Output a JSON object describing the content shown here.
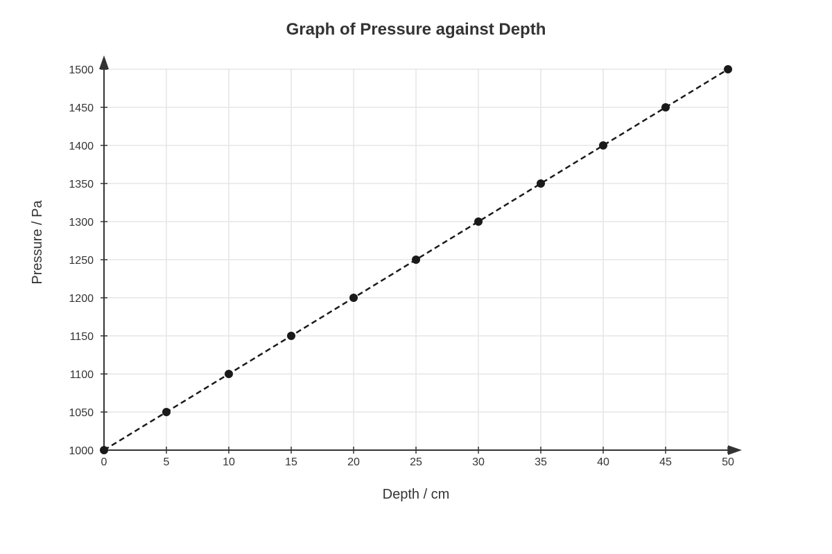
{
  "chart_data": {
    "type": "line",
    "title": "Graph of Pressure against Depth",
    "xlabel": "Depth / cm",
    "ylabel": "Pressure / Pa",
    "x": [
      0,
      5,
      10,
      15,
      20,
      25,
      30,
      35,
      40,
      45,
      50
    ],
    "series": [
      {
        "values": [
          1000,
          1050,
          1100,
          1150,
          1200,
          1250,
          1300,
          1350,
          1400,
          1450,
          1500
        ],
        "line_style": "dashed",
        "marker": "circle",
        "color": "#1a1a1a"
      }
    ],
    "xlim": [
      0,
      50
    ],
    "ylim": [
      1000,
      1500
    ],
    "x_ticks": [
      0,
      5,
      10,
      15,
      20,
      25,
      30,
      35,
      40,
      45,
      50
    ],
    "y_ticks": [
      1000,
      1050,
      1100,
      1150,
      1200,
      1250,
      1300,
      1350,
      1400,
      1450,
      1500
    ],
    "grid": true,
    "legend": "none",
    "colors": {
      "axis": "#333333",
      "grid": "#e6e6e6",
      "text": "#333333"
    }
  }
}
